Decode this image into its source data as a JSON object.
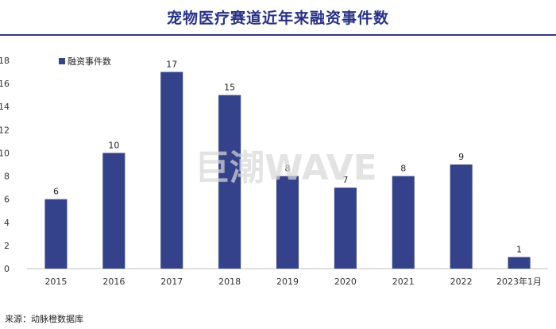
{
  "chart_data": {
    "type": "bar",
    "title": "宠物医疗赛道近年来融资事件数",
    "categories": [
      "2015",
      "2016",
      "2017",
      "2018",
      "2019",
      "2020",
      "2021",
      "2022",
      "2023年1月"
    ],
    "series": [
      {
        "name": "融资事件数",
        "values": [
          6,
          10,
          17,
          15,
          8,
          7,
          8,
          9,
          1
        ]
      }
    ],
    "ylim": [
      0,
      18
    ],
    "yticks": [
      0,
      2,
      4,
      6,
      8,
      10,
      12,
      14,
      16,
      18
    ],
    "legend_position": "top-left",
    "grid": false,
    "bar_color": "#33428a"
  },
  "watermark": "巨潮WAVE",
  "source": "来源：动脉橙数据库"
}
